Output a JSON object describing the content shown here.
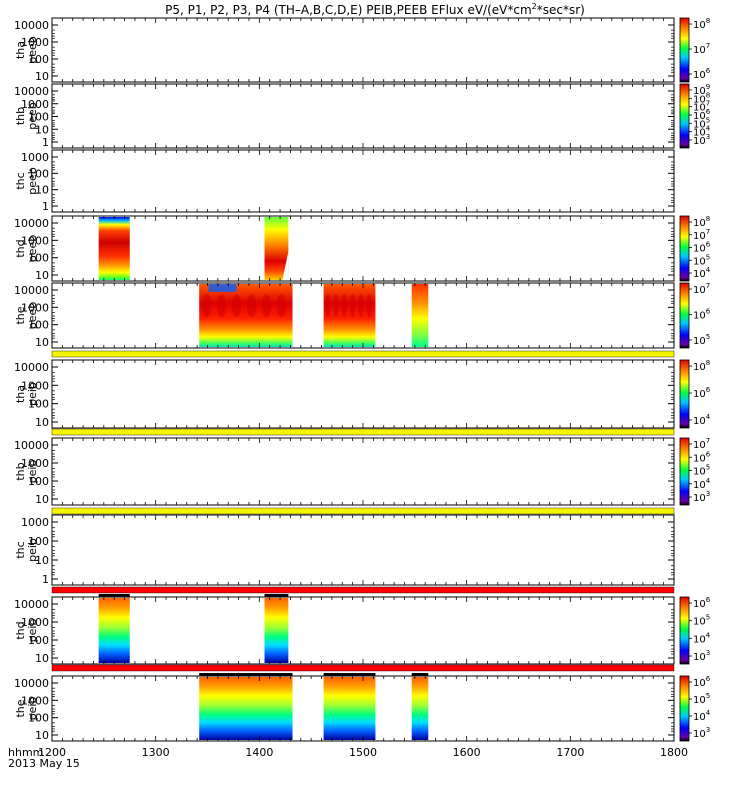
{
  "title_parts": {
    "main": "P5, P1, P2, P3, P4 (TH–A,B,C,D,E) PEIB,PEEB EFlux eV/(eV*cm",
    "sup": "2",
    "tail": "*sec*sr)"
  },
  "xaxis": {
    "label": "hhmm",
    "date": "2013 May 15",
    "ticks": [
      "1200",
      "1300",
      "1400",
      "1500",
      "1600",
      "1700",
      "1800"
    ]
  },
  "chart_data": [
    {
      "type": "heatmap",
      "panel": "tha peeb",
      "ylabel": [
        "tha",
        "peeb"
      ],
      "yticks": [
        "10000",
        "1000",
        "100",
        "10"
      ],
      "colorbar": {
        "ticks": [
          {
            "base": "10",
            "exp": "8"
          },
          {
            "base": "10",
            "exp": "7"
          },
          {
            "base": "10",
            "exp": "6"
          }
        ]
      },
      "intervals": [],
      "marker": "none"
    },
    {
      "type": "heatmap",
      "panel": "thb peeb",
      "ylabel": [
        "thb",
        "peeb"
      ],
      "yticks": [
        "10000",
        "1000",
        "100",
        "10",
        "1"
      ],
      "colorbar": {
        "ticks": [
          {
            "base": "10",
            "exp": "9"
          },
          {
            "base": "10",
            "exp": "8"
          },
          {
            "base": "10",
            "exp": "7"
          },
          {
            "base": "10",
            "exp": "6"
          },
          {
            "base": "10",
            "exp": "5"
          },
          {
            "base": "10",
            "exp": "4"
          },
          {
            "base": "10",
            "exp": "3"
          }
        ]
      },
      "intervals": [],
      "marker": "none"
    },
    {
      "type": "heatmap",
      "panel": "thc peeb",
      "ylabel": [
        "thc",
        "peeb"
      ],
      "yticks": [
        "1000",
        "100",
        "10",
        "1"
      ],
      "colorbar": null,
      "intervals": [],
      "marker": "none"
    },
    {
      "type": "heatmap",
      "panel": "thd peeb",
      "ylabel": [
        "thd",
        "peeb"
      ],
      "yticks": [
        "10000",
        "1000",
        "100",
        "10"
      ],
      "colorbar": {
        "ticks": [
          {
            "base": "10",
            "exp": "8"
          },
          {
            "base": "10",
            "exp": "7"
          },
          {
            "base": "10",
            "exp": "6"
          },
          {
            "base": "10",
            "exp": "5"
          },
          {
            "base": "10",
            "exp": "4"
          }
        ]
      },
      "intervals": [
        {
          "start": 1245,
          "end": 1275,
          "style": "e-top"
        },
        {
          "start": 1405,
          "end": 1428,
          "style": "e-funnel"
        }
      ],
      "marker": "none"
    },
    {
      "type": "heatmap",
      "panel": "the peeb",
      "ylabel": [
        "the",
        "peeb"
      ],
      "yticks": [
        "10000",
        "1000",
        "100",
        "10"
      ],
      "colorbar": {
        "ticks": [
          {
            "base": "10",
            "exp": "7"
          },
          {
            "base": "10",
            "exp": "6"
          },
          {
            "base": "10",
            "exp": "5"
          }
        ]
      },
      "intervals": [
        {
          "start": 1342,
          "end": 1432,
          "style": "e-wide"
        },
        {
          "start": 1462,
          "end": 1512,
          "style": "e-wide"
        },
        {
          "start": 1547,
          "end": 1563,
          "style": "e-narrow"
        }
      ],
      "marker": "yellow"
    },
    {
      "type": "heatmap",
      "panel": "tha peib",
      "ylabel": [
        "tha",
        "peib"
      ],
      "yticks": [
        "10000",
        "1000",
        "100",
        "10"
      ],
      "colorbar": {
        "ticks": [
          {
            "base": "10",
            "exp": "8"
          },
          {
            "base": "10",
            "exp": "6"
          },
          {
            "base": "10",
            "exp": "4"
          }
        ]
      },
      "intervals": [],
      "marker": "yellow"
    },
    {
      "type": "heatmap",
      "panel": "thb peib",
      "ylabel": [
        "thb",
        "peib"
      ],
      "yticks": [
        "10000",
        "1000",
        "100",
        "10"
      ],
      "colorbar": {
        "ticks": [
          {
            "base": "10",
            "exp": "7"
          },
          {
            "base": "10",
            "exp": "6"
          },
          {
            "base": "10",
            "exp": "5"
          },
          {
            "base": "10",
            "exp": "4"
          },
          {
            "base": "10",
            "exp": "3"
          }
        ]
      },
      "intervals": [],
      "marker": "yellow"
    },
    {
      "type": "heatmap",
      "panel": "thc peib",
      "ylabel": [
        "thc",
        "peib"
      ],
      "yticks": [
        "1000",
        "100",
        "10",
        "1"
      ],
      "colorbar": null,
      "intervals": [],
      "marker": "red"
    },
    {
      "type": "heatmap",
      "panel": "thd peib",
      "ylabel": [
        "thd",
        "peib"
      ],
      "yticks": [
        "10000",
        "1000",
        "100",
        "10"
      ],
      "colorbar": {
        "ticks": [
          {
            "base": "10",
            "exp": "6"
          },
          {
            "base": "10",
            "exp": "5"
          },
          {
            "base": "10",
            "exp": "4"
          },
          {
            "base": "10",
            "exp": "3"
          }
        ]
      },
      "intervals": [
        {
          "start": 1245,
          "end": 1275,
          "style": "i"
        },
        {
          "start": 1405,
          "end": 1428,
          "style": "i"
        }
      ],
      "marker": "red"
    },
    {
      "type": "heatmap",
      "panel": "the peib",
      "ylabel": [
        "the",
        "peib"
      ],
      "yticks": [
        "10000",
        "1000",
        "100",
        "10"
      ],
      "colorbar": {
        "ticks": [
          {
            "base": "10",
            "exp": "6"
          },
          {
            "base": "10",
            "exp": "5"
          },
          {
            "base": "10",
            "exp": "4"
          },
          {
            "base": "10",
            "exp": "3"
          }
        ]
      },
      "intervals": [
        {
          "start": 1342,
          "end": 1432,
          "style": "i"
        },
        {
          "start": 1462,
          "end": 1512,
          "style": "i"
        },
        {
          "start": 1547,
          "end": 1563,
          "style": "i"
        }
      ],
      "marker": "none"
    }
  ]
}
